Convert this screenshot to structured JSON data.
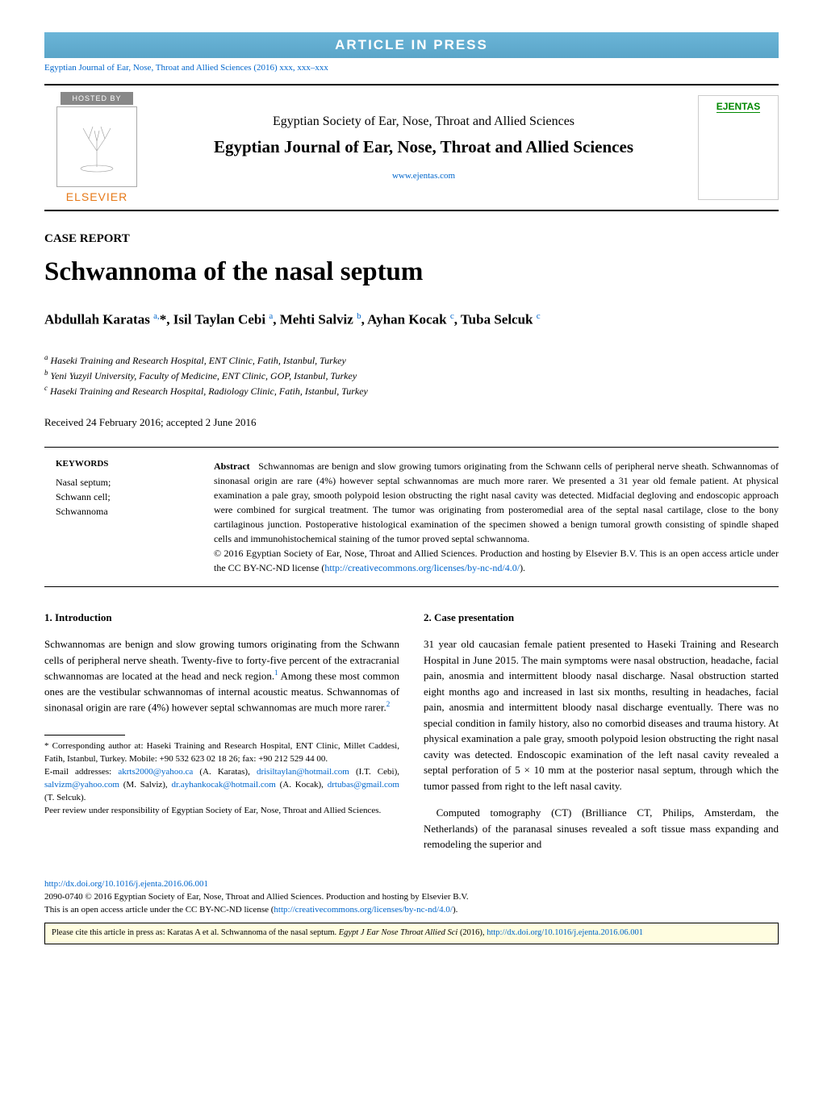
{
  "banner": "ARTICLE IN PRESS",
  "citation": "Egyptian Journal of Ear, Nose, Throat and Allied Sciences (2016) xxx, xxx–xxx",
  "hosted_by": "HOSTED BY",
  "elsevier": "ELSEVIER",
  "society": "Egyptian Society of Ear, Nose, Throat and Allied Sciences",
  "journal": "Egyptian Journal of Ear, Nose, Throat and Allied Sciences",
  "journal_url": "www.ejentas.com",
  "cover_brand": "EJENTAS",
  "article_type": "CASE REPORT",
  "title": "Schwannoma of the nasal septum",
  "authors_html": "Abdullah Karatas <sup>a,</sup>*, Isil Taylan Cebi <sup>a</sup>, Mehti Salviz <sup>b</sup>, Ayhan Kocak <sup>c</sup>, Tuba Selcuk <sup>c</sup>",
  "affiliations": [
    {
      "mark": "a",
      "text": "Haseki Training and Research Hospital, ENT Clinic, Fatih, Istanbul, Turkey"
    },
    {
      "mark": "b",
      "text": "Yeni Yuzyil University, Faculty of Medicine, ENT Clinic, GOP, Istanbul, Turkey"
    },
    {
      "mark": "c",
      "text": "Haseki Training and Research Hospital, Radiology Clinic, Fatih, Istanbul, Turkey"
    }
  ],
  "dates": "Received 24 February 2016; accepted 2 June 2016",
  "keywords_heading": "KEYWORDS",
  "keywords": "Nasal septum;\nSchwann cell;\nSchwannoma",
  "abstract_label": "Abstract",
  "abstract": "Schwannomas are benign and slow growing tumors originating from the Schwann cells of peripheral nerve sheath. Schwannomas of sinonasal origin are rare (4%) however septal schwannomas are much more rarer. We presented a 31 year old female patient. At physical examination a pale gray, smooth polypoid lesion obstructing the right nasal cavity was detected. Midfacial degloving and endoscopic approach were combined for surgical treatment. The tumor was originating from posteromedial area of the septal nasal cartilage, close to the bony cartilaginous junction. Postoperative histological examination of the specimen showed a benign tumoral growth consisting of spindle shaped cells and immunohistochemical staining of the tumor proved septal schwannoma.",
  "copyright": "© 2016 Egyptian Society of Ear, Nose, Throat and Allied Sciences. Production and hosting by Elsevier B.V. This is an open access article under the CC BY-NC-ND license (",
  "license_url": "http://creativecommons.org/licenses/by-nc-nd/4.0/",
  "license_close": ").",
  "sec1_heading": "1. Introduction",
  "sec1_p1a": "Schwannomas are benign and slow growing tumors originating from the Schwann cells of peripheral nerve sheath. Twenty-five to forty-five percent of the extracranial schwannomas are located at the head and neck region.",
  "sec1_ref1": "1",
  "sec1_p1b": " Among these most common ones are the vestibular schwannomas of internal acoustic meatus. Schwannomas of sinonasal origin are rare (4%) however septal schwannomas are much more rarer.",
  "sec1_ref2": "2",
  "sec2_heading": "2. Case presentation",
  "sec2_p1": "31 year old caucasian female patient presented to Haseki Training and Research Hospital in June 2015. The main symptoms were nasal obstruction, headache, facial pain, anosmia and intermittent bloody nasal discharge. Nasal obstruction started eight months ago and increased in last six months, resulting in headaches, facial pain, anosmia and intermittent bloody nasal discharge eventually. There was no special condition in family history, also no comorbid diseases and trauma history. At physical examination a pale gray, smooth polypoid lesion obstructing the right nasal cavity was detected. Endoscopic examination of the left nasal cavity revealed a septal perforation of 5 × 10 mm at the posterior nasal septum, through which the tumor passed from right to the left nasal cavity.",
  "sec2_p2": "Computed tomography (CT) (Brilliance CT, Philips, Amsterdam, the Netherlands) of the paranasal sinuses revealed a soft tissue mass expanding and remodeling the superior and",
  "corr_label": "* Corresponding author at: Haseki Training and Research Hospital, ENT Clinic, Millet Caddesi, Fatih, Istanbul, Turkey. Mobile: +90 532 623 02 18 26; fax: +90 212 529 44 00.",
  "emails_label": "E-mail addresses: ",
  "emails": [
    {
      "addr": "akrts2000@yahoo.ca",
      "who": " (A. Karatas), "
    },
    {
      "addr": "drisiltaylan@hotmail.com",
      "who": " (I.T. Cebi), "
    },
    {
      "addr": "salvizm@yahoo.com",
      "who": " (M. Salviz), "
    },
    {
      "addr": "dr.ayhankocak@hotmail.com",
      "who": " (A. Kocak), "
    },
    {
      "addr": "drtubas@gmail.com",
      "who": " (T. Selcuk)."
    }
  ],
  "peer_review": "Peer review under responsibility of Egyptian Society of Ear, Nose, Throat and Allied Sciences.",
  "doi": "http://dx.doi.org/10.1016/j.ejenta.2016.06.001",
  "issn_line_a": "2090-0740 © 2016 Egyptian Society of Ear, Nose, Throat and Allied Sciences. Production and hosting by Elsevier B.V.",
  "issn_line_b": "This is an open access article under the CC BY-NC-ND license (",
  "cite_prefix": "Please cite this article in press as: Karatas A et al. Schwannoma of the nasal septum. ",
  "cite_journal": "Egypt J Ear Nose Throat Allied Sci",
  "cite_year": " (2016), ",
  "cite_doi": "http://dx.doi.org/10.1016/j.ejenta.2016.06.001",
  "colors": {
    "link": "#0066cc",
    "banner_bg": "#5aa5c8",
    "elsevier": "#e67817",
    "ejentas": "#008800",
    "citebox_bg": "#fffde0"
  }
}
